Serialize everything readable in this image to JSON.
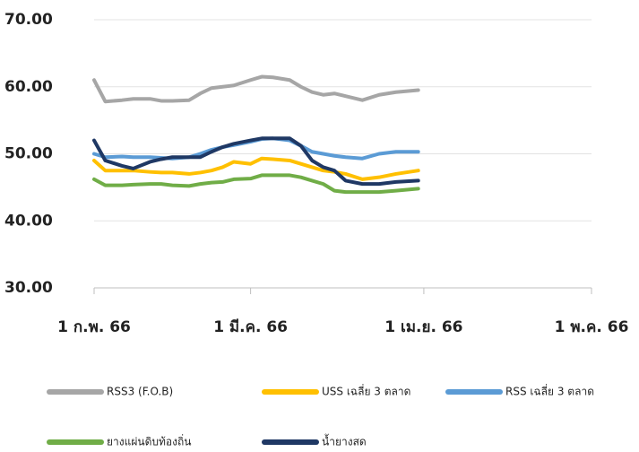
{
  "chart_data": {
    "type": "line",
    "x": [
      0,
      2,
      5,
      7,
      10,
      12,
      14,
      17,
      19,
      21,
      23,
      25,
      28,
      30,
      32,
      35,
      37,
      39,
      41,
      43,
      45,
      48,
      51,
      54,
      58
    ],
    "xlim": [
      0,
      89
    ],
    "xticks": [
      {
        "value": 0,
        "label": "1 ก.พ. 66"
      },
      {
        "value": 28,
        "label": "1 มี.ค. 66"
      },
      {
        "value": 59,
        "label": "1 เม.ย. 66"
      },
      {
        "value": 89,
        "label": "1 พ.ค. 66"
      }
    ],
    "ylim": [
      30,
      70
    ],
    "yticks": [
      {
        "value": 30,
        "label": "30.00"
      },
      {
        "value": 40,
        "label": "40.00"
      },
      {
        "value": 50,
        "label": "50.00"
      },
      {
        "value": 60,
        "label": "60.00"
      },
      {
        "value": 70,
        "label": "70.00"
      }
    ],
    "grid": true,
    "legend": "bottom",
    "series": [
      {
        "name": "RSS3 (F.O.B)",
        "color": "#a6a6a6",
        "values": [
          61,
          57.8,
          58,
          58.2,
          58.2,
          57.9,
          57.9,
          58,
          59,
          59.8,
          60,
          60.2,
          61,
          61.5,
          61.4,
          61,
          60,
          59.2,
          58.8,
          59,
          58.6,
          58,
          58.8,
          59.2,
          59.5
        ]
      },
      {
        "name": "USS เฉลี่ย 3 ตลาด",
        "color": "#ffc000",
        "values": [
          49,
          47.5,
          47.5,
          47.5,
          47.3,
          47.2,
          47.2,
          47,
          47.2,
          47.5,
          48,
          48.8,
          48.5,
          49.3,
          49.2,
          49,
          48.5,
          48,
          47.5,
          47.3,
          47,
          46.2,
          46.5,
          47,
          47.5
        ]
      },
      {
        "name": "RSS เฉลี่ย 3 ตลาด",
        "color": "#5b9bd5",
        "values": [
          50,
          49.5,
          49.6,
          49.5,
          49.5,
          49.4,
          49.3,
          49.5,
          50,
          50.6,
          51,
          51.3,
          51.8,
          52.2,
          52.3,
          52,
          51.2,
          50.3,
          50,
          49.7,
          49.5,
          49.3,
          50,
          50.3,
          50.3
        ]
      },
      {
        "name": "ยางแผ่นดิบท้องถิ่น",
        "color": "#70ad47",
        "values": [
          46.2,
          45.3,
          45.3,
          45.4,
          45.5,
          45.5,
          45.3,
          45.2,
          45.5,
          45.7,
          45.8,
          46.2,
          46.3,
          46.8,
          46.8,
          46.8,
          46.5,
          46,
          45.5,
          44.5,
          44.3,
          44.3,
          44.3,
          44.5,
          44.8
        ]
      },
      {
        "name": "น้ำยางสด",
        "color": "#1f3864",
        "values": [
          52,
          49,
          48.2,
          47.8,
          48.8,
          49.2,
          49.5,
          49.5,
          49.5,
          50.3,
          51,
          51.5,
          52,
          52.3,
          52.3,
          52.3,
          51.2,
          49,
          48,
          47.5,
          46,
          45.5,
          45.5,
          45.8,
          46
        ]
      }
    ]
  }
}
